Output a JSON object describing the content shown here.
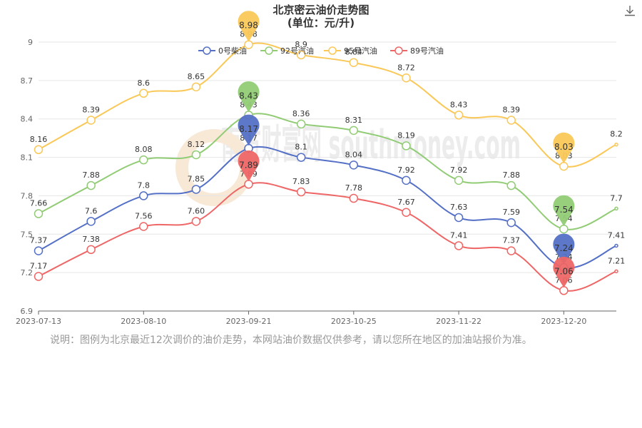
{
  "header": {
    "title": "北京密云油价走势图",
    "subtitle": "(单位：元/升)",
    "download_icon": "download-icon"
  },
  "note": "说明：图例为北京最近12次调价的油价走势，本网站油价数据仅供参考，请以您所在地区的加油站报价为准。",
  "watermark": "南方财富网 southmoney.com",
  "chart_data": {
    "type": "line",
    "title": "北京密云油价走势图",
    "subtitle": "(单位：元/升)",
    "x": [
      "2023-07-13",
      "2023-07-27",
      "2023-08-10",
      "2023-08-24",
      "2023-09-21",
      "2023-10-11",
      "2023-10-25",
      "2023-11-08",
      "2023-11-22",
      "2023-12-06",
      "2023-12-20",
      "2023-12-29"
    ],
    "xticks": [
      "2023-07-13",
      "2023-08-10",
      "2023-09-21",
      "2023-10-25",
      "2023-11-22",
      "2023-12-20"
    ],
    "yticks": [
      "6.9",
      "7.2",
      "7.5",
      "7.8",
      "8.1",
      "8.4",
      "8.7",
      "9"
    ],
    "ylim": [
      6.9,
      9.0
    ],
    "grid": true,
    "legend": "top-center",
    "series": [
      {
        "name": "0号柴油",
        "color": "#5470c6",
        "values": [
          7.37,
          7.6,
          7.8,
          7.85,
          8.17,
          8.1,
          8.04,
          7.92,
          7.63,
          7.59,
          7.24,
          7.41
        ],
        "labels": [
          "7.37",
          "7.6",
          "7.8",
          "7.85",
          "8.17",
          "8.1",
          "8.04",
          "7.92",
          "7.63",
          "7.59",
          "7.24",
          "7.41"
        ],
        "max": "8.17",
        "min": "7.24"
      },
      {
        "name": "92号汽油",
        "color": "#91cc75",
        "values": [
          7.66,
          7.88,
          8.08,
          8.12,
          8.43,
          8.36,
          8.31,
          8.19,
          7.92,
          7.88,
          7.54,
          7.7
        ],
        "labels": [
          "7.66",
          "7.88",
          "8.08",
          "8.12",
          "8.43",
          "8.36",
          "8.31",
          "8.19",
          "7.92",
          "7.88",
          "7.54",
          "7.7"
        ],
        "max": "8.43",
        "min": "7.54"
      },
      {
        "name": "95号汽油",
        "color": "#fac858",
        "values": [
          8.16,
          8.39,
          8.6,
          8.65,
          8.98,
          8.9,
          8.84,
          8.72,
          8.43,
          8.39,
          8.03,
          8.2
        ],
        "labels": [
          "8.16",
          "8.39",
          "8.6",
          "8.65",
          "8.98",
          "8.9",
          "8.84",
          "8.72",
          "8.43",
          "8.39",
          "8.03",
          "8.2"
        ],
        "max": "8.98",
        "min": "8.03"
      },
      {
        "name": "89号汽油",
        "color": "#ee6666",
        "values": [
          7.17,
          7.38,
          7.56,
          7.6,
          7.89,
          7.83,
          7.78,
          7.67,
          7.41,
          7.37,
          7.06,
          7.21
        ],
        "labels": [
          "7.17",
          "7.38",
          "7.56",
          "7.60",
          "7.89",
          "7.83",
          "7.78",
          "7.67",
          "7.41",
          "7.37",
          "7.06",
          "7.21"
        ],
        "max": "7.89",
        "min": "7.06"
      }
    ]
  }
}
